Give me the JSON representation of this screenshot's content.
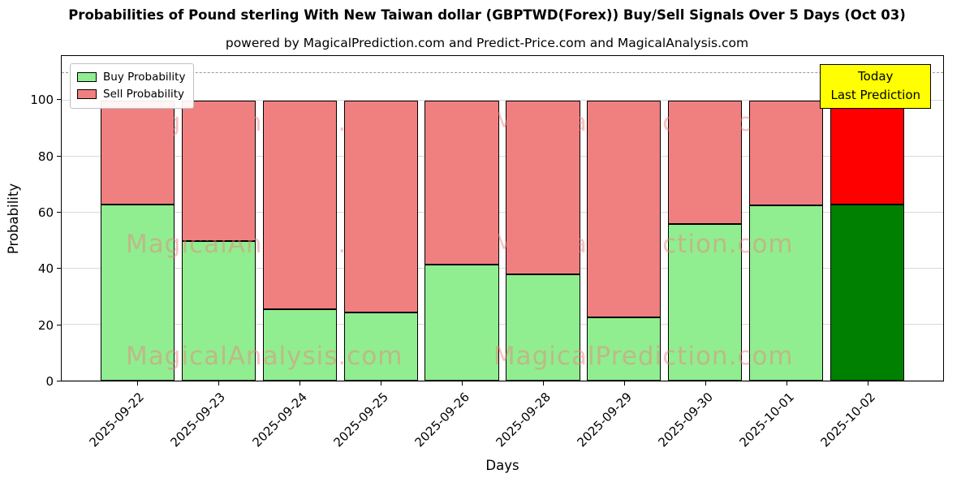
{
  "title": "Probabilities of Pound sterling With New Taiwan dollar (GBPTWD(Forex)) Buy/Sell Signals Over 5 Days (Oct 03)",
  "subtitle": "powered by MagicalPrediction.com and Predict-Price.com and MagicalAnalysis.com",
  "annotation": {
    "line1": "Today",
    "line2": "Last Prediction",
    "bg": "#ffff00"
  },
  "legend": [
    {
      "label": "Buy Probability",
      "color": "#90ee90"
    },
    {
      "label": "Sell Probability",
      "color": "#f08080"
    }
  ],
  "watermarks": [
    "MagicalAnalysis.com",
    "MagicalPrediction.com"
  ],
  "chart_data": {
    "type": "bar",
    "stacked": true,
    "title": "Probabilities of Pound sterling With New Taiwan dollar (GBPTWD(Forex)) Buy/Sell Signals Over 5 Days (Oct 03)",
    "xlabel": "Days",
    "ylabel": "Probability",
    "ylim": [
      0,
      116
    ],
    "yticks": [
      0,
      20,
      40,
      60,
      80,
      100
    ],
    "dashed_line_y": 110,
    "grid": "horizontal",
    "legend_position": "upper-left",
    "categories": [
      "2025-09-22",
      "2025-09-23",
      "2025-09-24",
      "2025-09-25",
      "2025-09-26",
      "2025-09-28",
      "2025-09-29",
      "2025-09-30",
      "2025-10-01",
      "2025-10-02"
    ],
    "series": [
      {
        "name": "Buy Probability",
        "color": "#90ee90",
        "last_bar_color": "#008000",
        "values": [
          63,
          50,
          25.5,
          24.5,
          41.5,
          38,
          22.5,
          56,
          62.5,
          63
        ]
      },
      {
        "name": "Sell Probability",
        "color": "#f08080",
        "last_bar_color": "#ff0000",
        "values": [
          37,
          50,
          74.5,
          75.5,
          58.5,
          62,
          77.5,
          44,
          37.5,
          37
        ]
      }
    ]
  }
}
